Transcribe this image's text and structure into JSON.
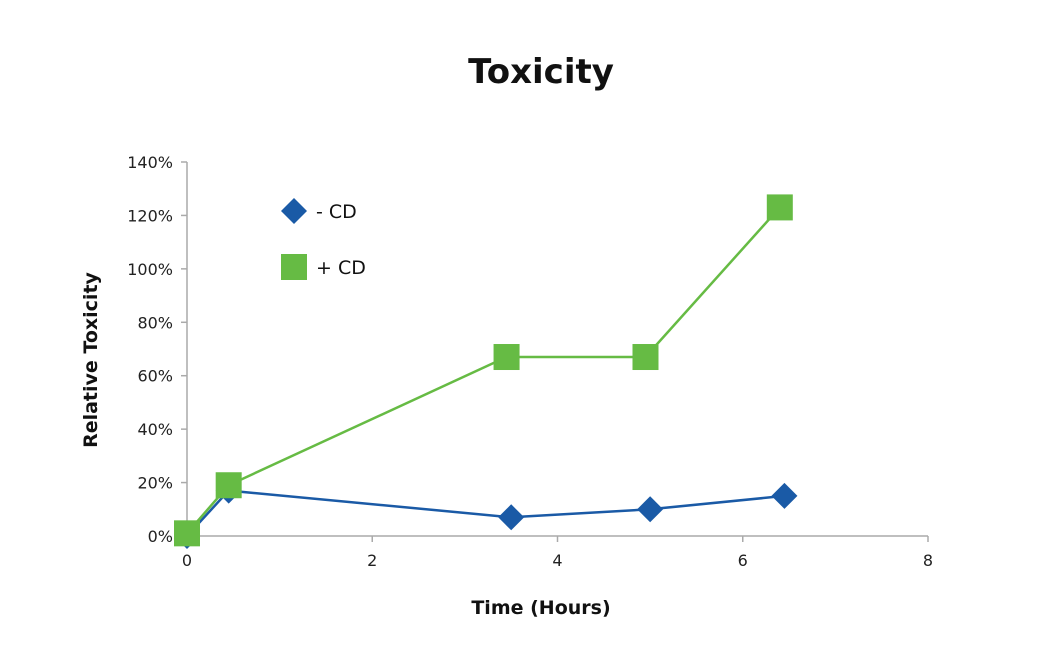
{
  "chart_data": {
    "type": "scatter",
    "title": "Toxicity",
    "xlabel": "Time (Hours)",
    "ylabel": "Relative Toxicity",
    "xlim": [
      0,
      8
    ],
    "ylim": [
      0,
      140
    ],
    "x_ticks": [
      "0",
      "2",
      "4",
      "6",
      "8"
    ],
    "y_ticks": [
      "0%",
      "20%",
      "40%",
      "60%",
      "80%",
      "100%",
      "120%",
      "140%"
    ],
    "grid": false,
    "legend_position": "top-left",
    "series": [
      {
        "name": "- CD",
        "marker": "diamond",
        "color": "#1a5aa6",
        "points": [
          {
            "x": 0,
            "y": 0
          },
          {
            "x": 0.45,
            "y": 17
          },
          {
            "x": 3.5,
            "y": 7
          },
          {
            "x": 5,
            "y": 10
          },
          {
            "x": 6.45,
            "y": 15
          }
        ]
      },
      {
        "name": "+ CD",
        "marker": "square",
        "color": "#66bb44",
        "points": [
          {
            "x": 0,
            "y": 1
          },
          {
            "x": 0.45,
            "y": 19
          },
          {
            "x": 3.45,
            "y": 67
          },
          {
            "x": 4.95,
            "y": 67
          },
          {
            "x": 6.4,
            "y": 123
          }
        ]
      }
    ]
  }
}
